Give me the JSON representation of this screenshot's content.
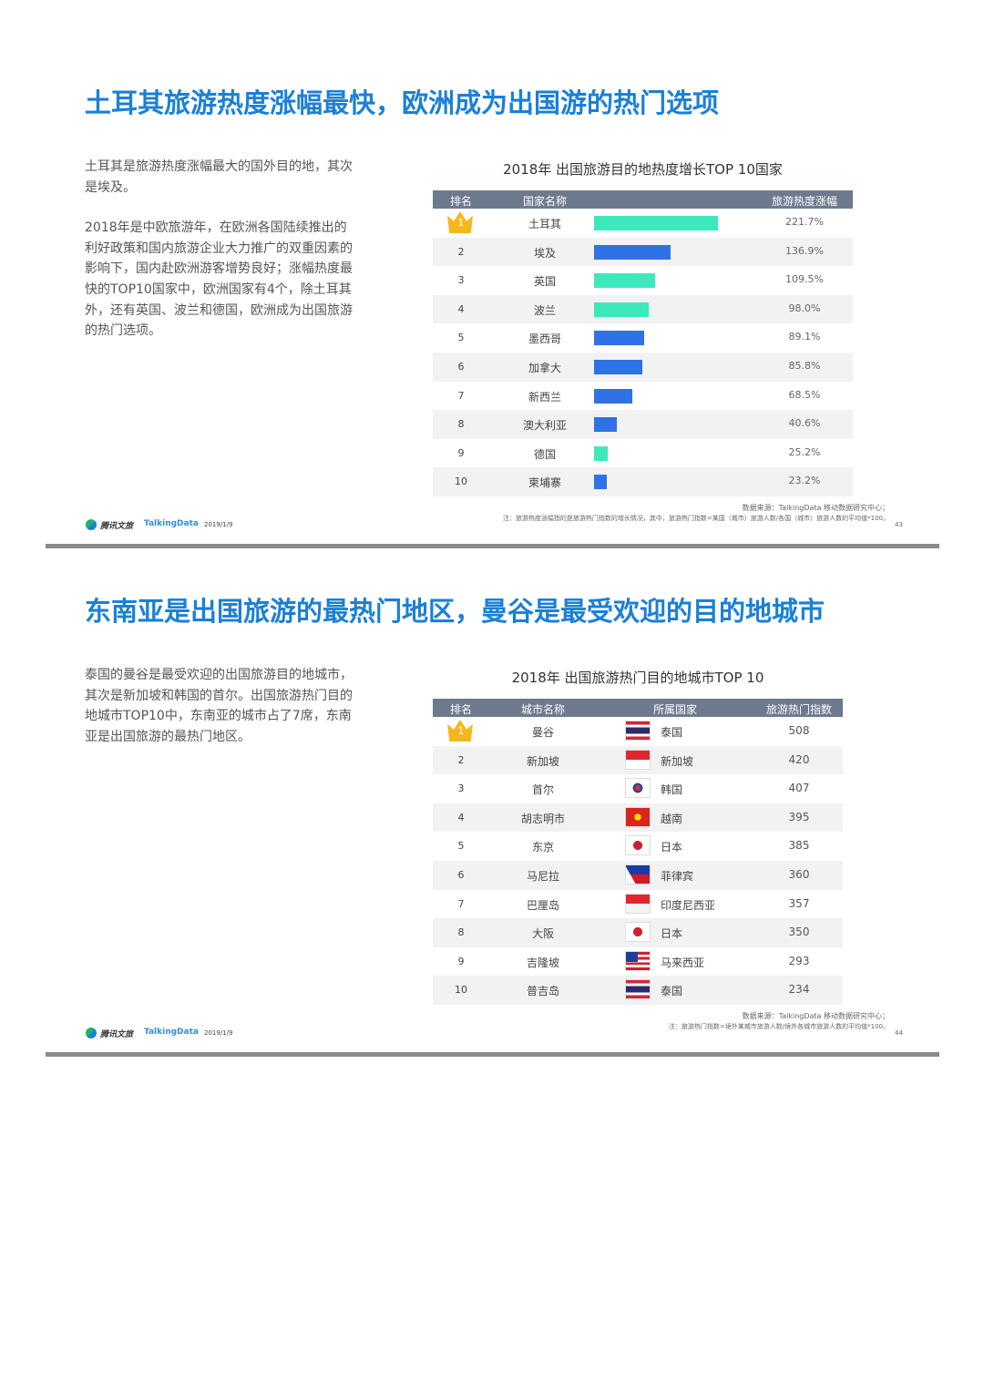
{
  "slides": [
    {
      "title": "土耳其旅游热度涨幅最快，欧洲成为出国游的热门选项",
      "paragraphs": [
        "土耳其是旅游热度涨幅最大的国外目的地，其次是埃及。",
        "2018年是中欧旅游年，在欧洲各国陆续推出的利好政策和国内旅游企业大力推广的双重因素的影响下，国内赴欧洲游客增势良好；涨幅热度最快的TOP10国家中，欧洲国家有4个，除土耳其外，还有英国、波兰和德国，欧洲成为出国旅游的热门选项。"
      ],
      "table": {
        "title": "2018年 出国旅游目的地热度增长TOP 10国家",
        "columns": [
          "排名",
          "国家名称",
          "旅游热度涨幅"
        ],
        "ranks": [
          1,
          2,
          3,
          4,
          5,
          6,
          7,
          8,
          9,
          10
        ],
        "names": [
          "土耳其",
          "埃及",
          "英国",
          "波兰",
          "墨西哥",
          "加拿大",
          "新西兰",
          "澳大利亚",
          "德国",
          "柬埔寨"
        ],
        "values": [
          221.7,
          136.9,
          109.5,
          98.0,
          89.1,
          85.8,
          68.5,
          40.6,
          25.2,
          23.2
        ],
        "value_labels": [
          "221.7%",
          "136.9%",
          "109.5%",
          "98.0%",
          "89.1%",
          "85.8%",
          "68.5%",
          "40.6%",
          "25.2%",
          "23.2%"
        ],
        "colors": [
          "#3ee8bd",
          "#2f72e6",
          "#3ee8bd",
          "#3ee8bd",
          "#2f72e6",
          "#2f72e6",
          "#2f72e6",
          "#2f72e6",
          "#3ee8bd",
          "#2f72e6"
        ]
      },
      "source": "数据来源：TalkingData 移动数据研究中心；",
      "note": "注：旅游热度涨幅指的是旅游热门指数的增长情况，其中，旅游热门指数=某国（城市）旅游人数/各国（城市）旅游人数的平均值*100。",
      "footer": {
        "brand": "腾讯文旅",
        "partner": "TalkingData",
        "date": "2019/1/9",
        "page": "43"
      }
    },
    {
      "title": "东南亚是出国旅游的最热门地区，曼谷是最受欢迎的目的地城市",
      "paragraphs": [
        "泰国的曼谷是最受欢迎的出国旅游目的地城市，其次是新加坡和韩国的首尔。出国旅游热门目的地城市TOP10中，东南亚的城市占了7席，东南亚是出国旅游的最热门地区。"
      ],
      "table": {
        "title": "2018年 出国旅游热门目的地城市TOP 10",
        "columns": [
          "排名",
          "城市名称",
          "所属国家",
          "旅游热门指数"
        ],
        "ranks": [
          1,
          2,
          3,
          4,
          5,
          6,
          7,
          8,
          9,
          10
        ],
        "cities": [
          "曼谷",
          "新加坡",
          "首尔",
          "胡志明市",
          "东京",
          "马尼拉",
          "巴厘岛",
          "大阪",
          "吉隆坡",
          "普吉岛"
        ],
        "countries": [
          "泰国",
          "新加坡",
          "韩国",
          "越南",
          "日本",
          "菲律宾",
          "印度尼西亚",
          "日本",
          "马来西亚",
          "泰国"
        ],
        "values": [
          508,
          420,
          407,
          395,
          385,
          360,
          357,
          350,
          293,
          234
        ]
      },
      "source": "数据来源：TalkingData 移动数据研究中心；",
      "note": "注：旅游热门指数=境外某城市旅游人数/境外各城市旅游人数的平均值*100。",
      "footer": {
        "brand": "腾讯文旅",
        "partner": "TalkingData",
        "date": "2019/1/9",
        "page": "44"
      }
    }
  ]
}
